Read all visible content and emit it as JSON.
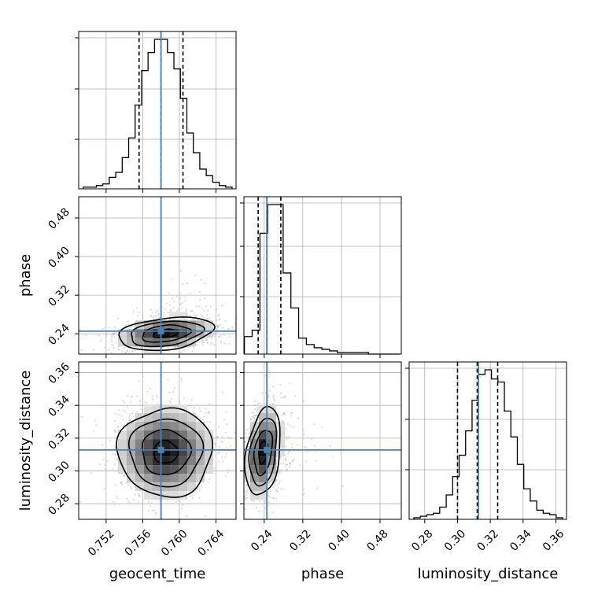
{
  "chart_data": {
    "type": "corner",
    "parameters": [
      {
        "name": "geocent_time",
        "range": [
          0.749,
          0.7662
        ],
        "ticks": [
          0.752,
          0.756,
          0.76,
          0.764
        ],
        "tick_labels": [
          "0.752",
          "0.756",
          "0.760",
          "0.764"
        ],
        "truth": 0.758,
        "quantiles": [
          0.7556,
          0.758,
          0.7604
        ]
      },
      {
        "name": "phase",
        "range": [
          0.198,
          0.524
        ],
        "ticks": [
          0.24,
          0.32,
          0.4,
          0.48
        ],
        "tick_labels": [
          "0.24",
          "0.32",
          "0.40",
          "0.48"
        ],
        "truth": 0.2455,
        "quantiles": [
          0.2275,
          0.2455,
          0.2745
        ]
      },
      {
        "name": "luminosity_distance",
        "range": [
          0.2705,
          0.3665
        ],
        "ticks": [
          0.28,
          0.3,
          0.32,
          0.34,
          0.36
        ],
        "tick_labels": [
          "0.28",
          "0.30",
          "0.32",
          "0.34",
          "0.36"
        ],
        "truth": 0.3128,
        "quantiles": [
          0.3,
          0.312,
          0.3245
        ]
      }
    ],
    "y_axis_labels": [
      "phase",
      "luminosity_distance"
    ],
    "hist_geocent_time": [
      1,
      1,
      2,
      3,
      7,
      10,
      19,
      31,
      51,
      72,
      83,
      91,
      91,
      83,
      73,
      55,
      34,
      22,
      12,
      8,
      4,
      2,
      1
    ],
    "hist_phase": [
      11,
      15,
      76,
      94,
      94,
      51,
      29,
      10,
      6,
      4,
      3,
      2,
      1,
      1,
      1,
      1,
      0,
      0,
      0,
      0
    ],
    "hist_luminosity_distance": [
      1,
      2,
      3,
      4,
      8,
      16,
      28,
      42,
      58,
      78,
      95,
      98,
      92,
      90,
      71,
      54,
      36,
      20,
      12,
      6,
      4,
      3,
      1
    ],
    "joint_centers": {
      "geocent_time_phase": [
        0.7585,
        0.2405
      ],
      "geocent_time_luminosity_distance": [
        0.7585,
        0.3115
      ],
      "phase_luminosity_distance": [
        0.238,
        0.3115
      ]
    },
    "colors": {
      "truth": "#4682b4",
      "hist": "#000000",
      "quantile": "#000000",
      "grid": "#b0b0b0",
      "scatter": "#9a9a9a"
    },
    "grid": true
  }
}
